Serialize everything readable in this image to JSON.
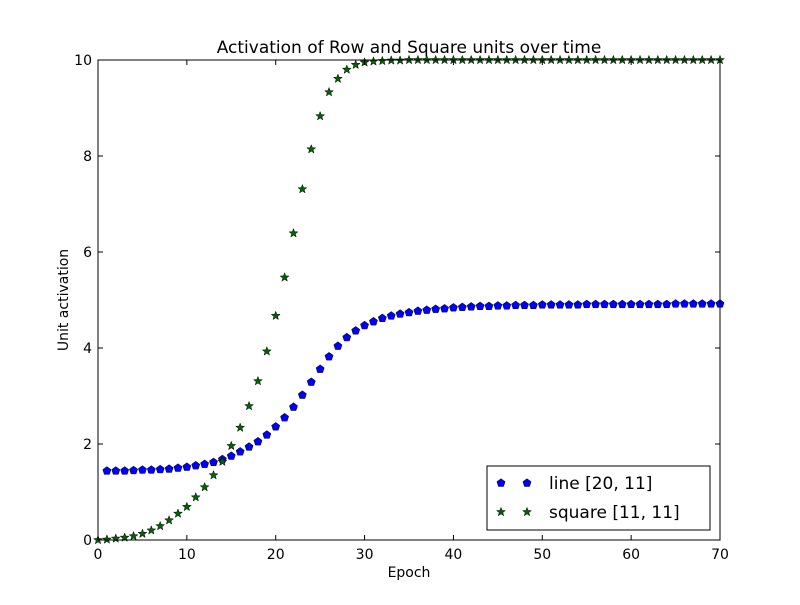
{
  "chart_data": {
    "type": "scatter",
    "title": "Activation of Row and Square units over time",
    "xlabel": "Epoch",
    "ylabel": "Unit activation",
    "xlim": [
      0,
      70
    ],
    "ylim": [
      0,
      10
    ],
    "xticks": [
      0,
      10,
      20,
      30,
      40,
      50,
      60,
      70
    ],
    "yticks": [
      0,
      2,
      4,
      6,
      8,
      10
    ],
    "grid": false,
    "legend_position": "lower-right",
    "series": [
      {
        "name": "line [20, 11]",
        "marker": "pentagon",
        "color": "#0000ff",
        "x": [
          1,
          2,
          3,
          4,
          5,
          6,
          7,
          8,
          9,
          10,
          11,
          12,
          13,
          14,
          15,
          16,
          17,
          18,
          19,
          20,
          21,
          22,
          23,
          24,
          25,
          26,
          27,
          28,
          29,
          30,
          31,
          32,
          33,
          34,
          35,
          36,
          37,
          38,
          39,
          40,
          41,
          42,
          43,
          44,
          45,
          46,
          47,
          48,
          49,
          50,
          51,
          52,
          53,
          54,
          55,
          56,
          57,
          58,
          59,
          60,
          61,
          62,
          63,
          64,
          65,
          66,
          67,
          68,
          69,
          70
        ],
        "y": [
          1.44,
          1.44,
          1.44,
          1.45,
          1.46,
          1.46,
          1.47,
          1.48,
          1.5,
          1.52,
          1.55,
          1.58,
          1.62,
          1.68,
          1.75,
          1.84,
          1.94,
          2.05,
          2.19,
          2.36,
          2.55,
          2.77,
          3.02,
          3.29,
          3.56,
          3.82,
          4.04,
          4.22,
          4.36,
          4.47,
          4.55,
          4.62,
          4.67,
          4.71,
          4.74,
          4.77,
          4.79,
          4.81,
          4.82,
          4.84,
          4.85,
          4.86,
          4.87,
          4.87,
          4.88,
          4.88,
          4.89,
          4.89,
          4.89,
          4.9,
          4.9,
          4.9,
          4.9,
          4.9,
          4.91,
          4.91,
          4.91,
          4.91,
          4.91,
          4.91,
          4.91,
          4.91,
          4.91,
          4.91,
          4.92,
          4.92,
          4.92,
          4.92,
          4.92,
          4.92
        ]
      },
      {
        "name": "square [11, 11]",
        "marker": "star",
        "color": "#006400",
        "x": [
          0,
          1,
          2,
          3,
          4,
          5,
          6,
          7,
          8,
          9,
          10,
          11,
          12,
          13,
          14,
          15,
          16,
          17,
          18,
          19,
          20,
          21,
          22,
          23,
          24,
          25,
          26,
          27,
          28,
          29,
          30,
          31,
          32,
          33,
          34,
          35,
          36,
          37,
          38,
          39,
          40,
          41,
          42,
          43,
          44,
          45,
          46,
          47,
          48,
          49,
          50,
          51,
          52,
          53,
          54,
          55,
          56,
          57,
          58,
          59,
          60,
          61,
          62,
          63,
          64,
          65,
          66,
          67,
          68,
          69,
          70
        ],
        "y": [
          0.0,
          0.01,
          0.03,
          0.05,
          0.08,
          0.13,
          0.2,
          0.29,
          0.41,
          0.55,
          0.69,
          0.89,
          1.1,
          1.35,
          1.63,
          1.96,
          2.34,
          2.79,
          3.31,
          3.93,
          4.67,
          5.47,
          6.39,
          7.31,
          8.14,
          8.83,
          9.33,
          9.61,
          9.8,
          9.9,
          9.95,
          9.97,
          9.98,
          9.99,
          9.99,
          10,
          10,
          10,
          10,
          10,
          10,
          10,
          10,
          10,
          10,
          10,
          10,
          10,
          10,
          10,
          10,
          10,
          10,
          10,
          10,
          10,
          10,
          10,
          10,
          10,
          10,
          10,
          10,
          10,
          10,
          10,
          10,
          10,
          10,
          10,
          10
        ]
      }
    ]
  }
}
